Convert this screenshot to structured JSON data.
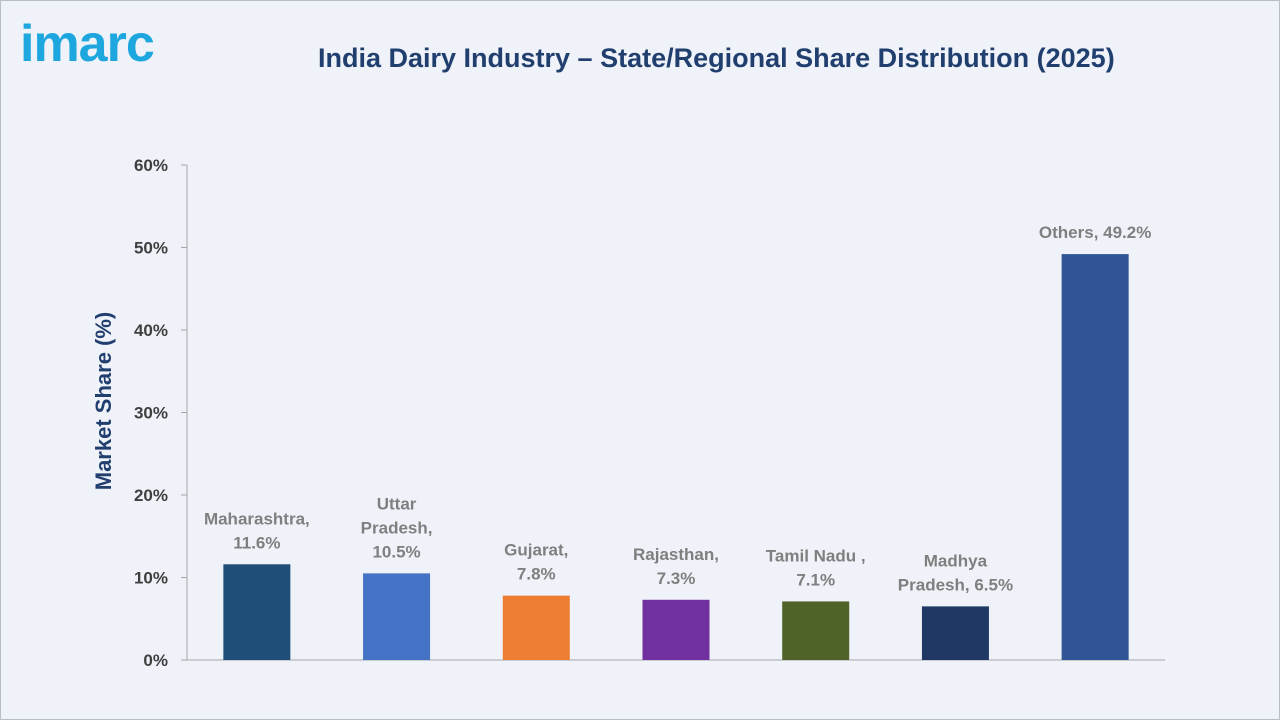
{
  "brand": {
    "logo_text": "imarc"
  },
  "chart_data": {
    "type": "bar",
    "title": "India Dairy Industry – State/Regional Share Distribution (2025)",
    "xlabel": "",
    "ylabel": "Market Share (%)",
    "ylim": [
      0,
      60
    ],
    "yticks": [
      {
        "value": 0,
        "label": "0%"
      },
      {
        "value": 10,
        "label": "10%"
      },
      {
        "value": 20,
        "label": "20%"
      },
      {
        "value": 30,
        "label": "30%"
      },
      {
        "value": 40,
        "label": "40%"
      },
      {
        "value": 50,
        "label": "50%"
      },
      {
        "value": 60,
        "label": "60%"
      }
    ],
    "categories": [
      "Maharashtra",
      "Uttar Pradesh",
      "Gujarat",
      "Rajasthan",
      "Tamil Nadu",
      "Madhya Pradesh",
      "Others"
    ],
    "values": [
      11.6,
      10.5,
      7.8,
      7.3,
      7.1,
      6.5,
      49.2
    ],
    "colors": [
      "#1f4e79",
      "#4472c4",
      "#ed7d31",
      "#7030a0",
      "#4f6228",
      "#1f3864",
      "#2f5597"
    ],
    "data_labels": [
      [
        "Maharashtra,",
        "11.6%"
      ],
      [
        "Uttar",
        "Pradesh,",
        "10.5%"
      ],
      [
        "Gujarat,",
        "7.8%"
      ],
      [
        "Rajasthan,",
        "7.3%"
      ],
      [
        "Tamil Nadu ,",
        "7.1%"
      ],
      [
        "Madhya",
        "Pradesh, 6.5%"
      ],
      [
        "Others, 49.2%"
      ]
    ],
    "grid": false,
    "legend": "none"
  }
}
